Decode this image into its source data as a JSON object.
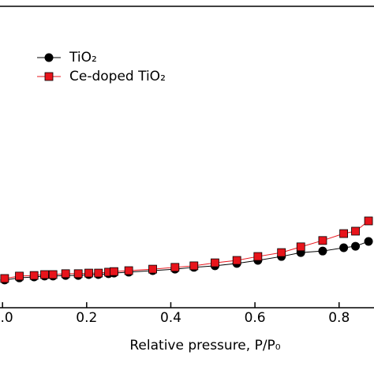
{
  "chart_data": {
    "type": "line",
    "x_label": "Relative pressure, P/P₀",
    "x": [
      0.005,
      0.04,
      0.075,
      0.1,
      0.12,
      0.15,
      0.18,
      0.205,
      0.228,
      0.252,
      0.265,
      0.3,
      0.357,
      0.41,
      0.455,
      0.505,
      0.557,
      0.607,
      0.663,
      0.709,
      0.761,
      0.811,
      0.839,
      0.87
    ],
    "series": [
      {
        "name": "TiO₂",
        "color": "#000000",
        "marker": "circle",
        "values": [
          9.2,
          9.9,
          10.2,
          10.5,
          10.5,
          10.7,
          10.7,
          11.0,
          11.0,
          11.3,
          11.5,
          11.8,
          12.3,
          12.8,
          13.4,
          13.9,
          14.7,
          15.7,
          17.0,
          18.3,
          18.8,
          19.9,
          20.4,
          22.0
        ]
      },
      {
        "name": "Ce-doped TiO₂",
        "color": "#e8141b",
        "marker": "square",
        "values": [
          9.7,
          10.5,
          10.7,
          11.0,
          11.0,
          11.3,
          11.3,
          11.5,
          11.5,
          11.8,
          12.0,
          12.3,
          12.8,
          13.4,
          13.9,
          14.9,
          15.7,
          17.0,
          18.3,
          20.2,
          22.3,
          24.6,
          25.4,
          28.8
        ]
      }
    ],
    "xlim": [
      -0.006,
      0.883
    ],
    "xticks": [
      {
        "value": 0,
        "label": "0.0"
      },
      0.2,
      0.4,
      0.6,
      0.8
    ],
    "ylim": [
      0,
      100
    ],
    "legend": "top-left"
  }
}
